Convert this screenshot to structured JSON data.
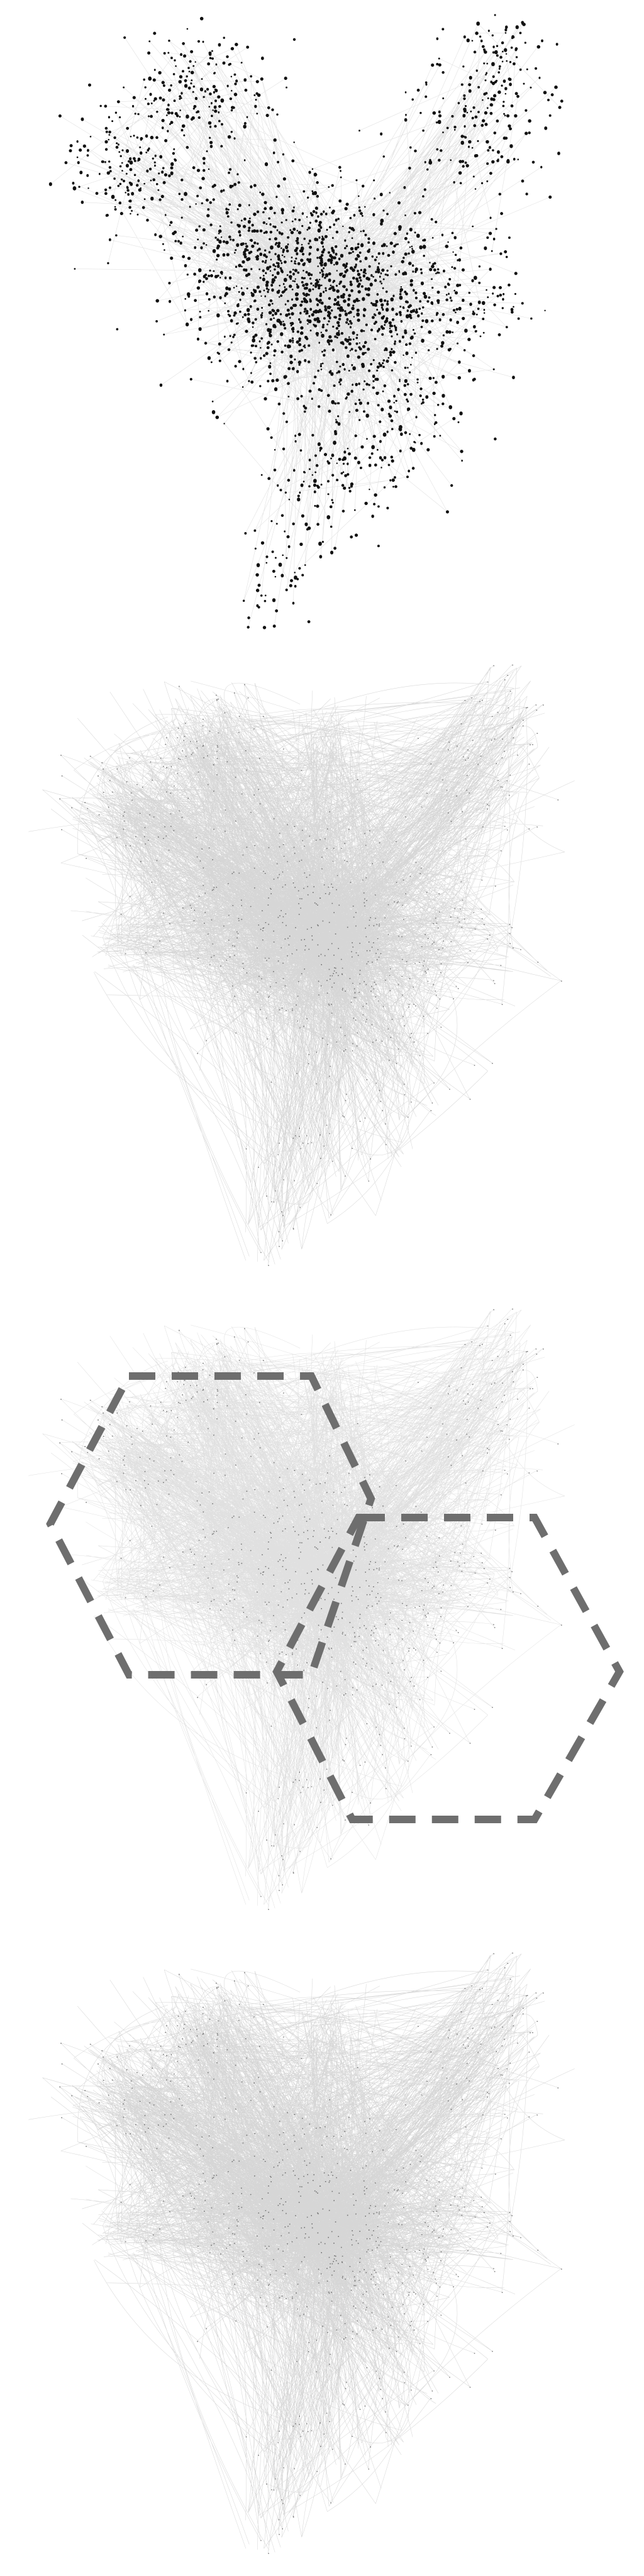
{
  "figure": {
    "panels": [
      {
        "id": "nodes-and-edges",
        "shows_nodes": true,
        "edge_style": "straight",
        "overlay": false
      },
      {
        "id": "bundled-edges",
        "shows_nodes": false,
        "edge_style": "bundled",
        "overlay": false
      },
      {
        "id": "bundled-edges-with-regions",
        "shows_nodes": false,
        "edge_style": "bundled",
        "overlay": true
      },
      {
        "id": "bundled-edges-final",
        "shows_nodes": false,
        "edge_style": "bundled",
        "overlay": false
      }
    ],
    "overlay_shape": "hexagon",
    "overlay_count": 2,
    "overlay_stroke_color": "#6e6e6e",
    "node_color": "#111111",
    "edge_color": "#000000"
  }
}
